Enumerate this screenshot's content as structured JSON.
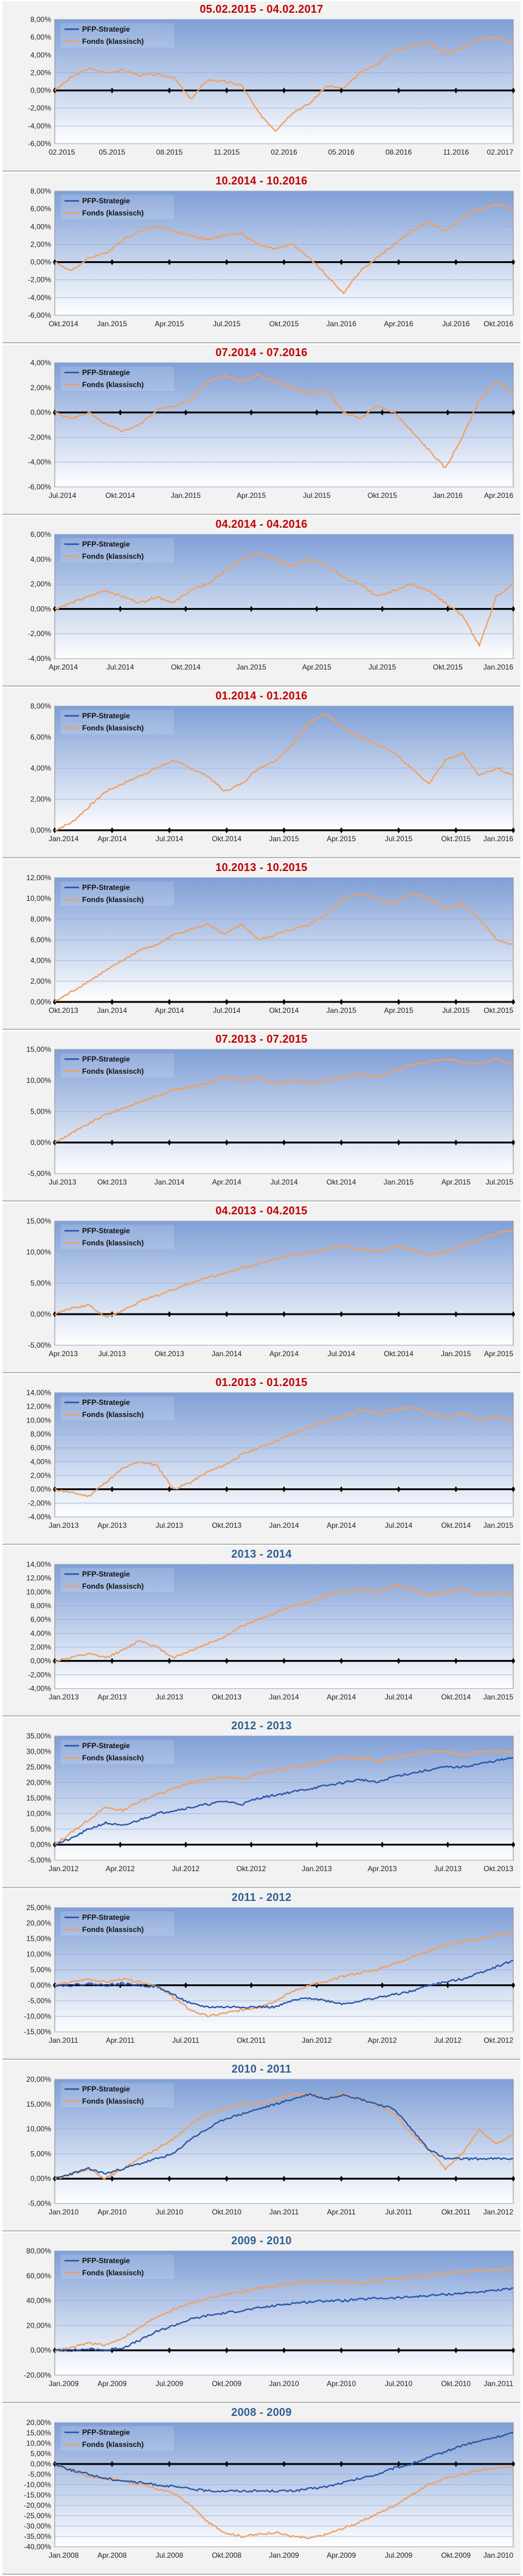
{
  "colors": {
    "title_red": "#c00000",
    "title_blue": "#2e5f93",
    "strategy_line": "#2855a6",
    "fund_line": "#f0a060",
    "plot_top": "#7f9fd6",
    "plot_bottom": "#ffffff",
    "grid": "#95aee0"
  },
  "legend": {
    "strategy": "PFP-Strategie",
    "fund": "Fonds (klassisch)"
  },
  "chart_data": [
    {
      "type": "line",
      "title": "05.02.2015 - 04.02.2017",
      "title_color": "red",
      "ylim": [
        -6,
        8
      ],
      "y_ticks": [
        -6,
        -4,
        -2,
        0,
        2,
        4,
        6,
        8
      ],
      "y_tick_labels": [
        "-6,00%",
        "-4,00%",
        "-2,00%",
        "0,00%",
        "2,00%",
        "4,00%",
        "6,00%",
        "8,00%"
      ],
      "x_tick_labels": [
        "02.2015",
        "05.2015",
        "08.2015",
        "11.2015",
        "02.2016",
        "05.2016",
        "08.2016",
        "11.2016",
        "02.2017"
      ],
      "strategy_visible": false,
      "fund_points": [
        0,
        1.5,
        2.5,
        2,
        2.3,
        1.7,
        1.8,
        1.5,
        -1.0,
        1.2,
        1.0,
        0.6,
        -2.5,
        -4.5,
        -2.5,
        -1.5,
        0.5,
        0.2,
        2.0,
        3.0,
        4.5,
        5.0,
        5.5,
        4.2,
        4.8,
        5.8,
        6.0,
        5.5
      ]
    },
    {
      "type": "line",
      "title": "10.2014 - 10.2016",
      "title_color": "red",
      "ylim": [
        -6,
        8
      ],
      "y_ticks": [
        -6,
        -4,
        -2,
        0,
        2,
        4,
        6,
        8
      ],
      "y_tick_labels": [
        "-6,00%",
        "-4,00%",
        "-2,00%",
        "0,00%",
        "2,00%",
        "4,00%",
        "6,00%",
        "8,00%"
      ],
      "x_tick_labels": [
        "Okt.2014",
        "Jan.2015",
        "Apr.2015",
        "Jul.2015",
        "Okt.2015",
        "Jan.2016",
        "Apr.2016",
        "Jul.2016",
        "Okt.2016"
      ],
      "strategy_visible": false,
      "fund_points": [
        0,
        -1.0,
        0.5,
        1.0,
        2.5,
        3.5,
        4.0,
        3.5,
        3.0,
        2.5,
        3.0,
        3.2,
        2.0,
        1.5,
        2.0,
        0.5,
        -1.5,
        -3.5,
        -1.0,
        0.5,
        2.0,
        3.5,
        4.5,
        3.5,
        5.0,
        6.0,
        6.5,
        6.0
      ]
    },
    {
      "type": "line",
      "title": "07.2014 - 07.2016",
      "title_color": "red",
      "ylim": [
        -6,
        4
      ],
      "y_ticks": [
        -6,
        -4,
        -2,
        0,
        2,
        4
      ],
      "y_tick_labels": [
        "-6,00%",
        "-4,00%",
        "-2,00%",
        "0,00%",
        "2,00%",
        "4,00%"
      ],
      "x_tick_labels": [
        "Jul.2014",
        "Okt.2014",
        "Jan.2015",
        "Apr.2015",
        "Jul.2015",
        "Okt.2015",
        "Jan.2016",
        "Apr.2016"
      ],
      "strategy_visible": false,
      "fund_points": [
        0,
        -0.5,
        0,
        -1.0,
        -1.5,
        -1.0,
        0.2,
        0.5,
        1.0,
        2.5,
        3.0,
        2.5,
        3.0,
        2.5,
        2.0,
        1.5,
        1.8,
        0,
        -0.5,
        0.5,
        0,
        -1.5,
        -3.0,
        -4.5,
        -2.0,
        1.0,
        2.5,
        1.5
      ]
    },
    {
      "type": "line",
      "title": "04.2014 - 04.2016",
      "title_color": "red",
      "ylim": [
        -4,
        6
      ],
      "y_ticks": [
        -4,
        -2,
        0,
        2,
        4,
        6
      ],
      "y_tick_labels": [
        "-4,00%",
        "-2,00%",
        "0,00%",
        "2,00%",
        "4,00%",
        "6,00%"
      ],
      "x_tick_labels": [
        "Apr.2014",
        "Jul.2014",
        "Okt.2014",
        "Jan.2015",
        "Apr.2015",
        "Jul.2015",
        "Okt.2015",
        "Jan.2016"
      ],
      "strategy_visible": false,
      "fund_points": [
        0,
        0.5,
        1.0,
        1.5,
        1.0,
        0.5,
        1.0,
        0.5,
        1.5,
        2.0,
        3.0,
        4.0,
        4.5,
        4.0,
        3.5,
        4.0,
        3.5,
        2.5,
        2.0,
        1.0,
        1.5,
        2.0,
        1.5,
        0.5,
        -0.5,
        -3.0,
        1.0,
        2.0
      ]
    },
    {
      "type": "line",
      "title": "01.2014 - 01.2016",
      "title_color": "red",
      "ylim": [
        0,
        8
      ],
      "y_ticks": [
        0,
        2,
        4,
        6,
        8
      ],
      "y_tick_labels": [
        "0,00%",
        "2,00%",
        "4,00%",
        "6,00%",
        "8,00%"
      ],
      "x_tick_labels": [
        "Jan.2014",
        "Apr.2014",
        "Jul.2014",
        "Okt.2014",
        "Jan.2015",
        "Apr.2015",
        "Jul.2015",
        "Okt.2015",
        "Jan.2016"
      ],
      "strategy_visible": false,
      "fund_points": [
        0,
        0.5,
        1.5,
        2.5,
        3.0,
        3.5,
        4.0,
        4.5,
        4.0,
        3.5,
        2.5,
        3.0,
        4.0,
        4.5,
        5.5,
        7.0,
        7.5,
        6.5,
        6.0,
        5.5,
        5.0,
        4.0,
        3.0,
        4.5,
        5.0,
        3.5,
        4.0,
        3.5
      ]
    },
    {
      "type": "line",
      "title": "10.2013 - 10.2015",
      "title_color": "red",
      "ylim": [
        0,
        12
      ],
      "y_ticks": [
        0,
        2,
        4,
        6,
        8,
        10,
        12
      ],
      "y_tick_labels": [
        "0,00%",
        "2,00%",
        "4,00%",
        "6,00%",
        "8,00%",
        "10,00%",
        "12,00%"
      ],
      "x_tick_labels": [
        "Okt.2013",
        "Jan.2014",
        "Apr.2014",
        "Jul.2014",
        "Okt.2014",
        "Jan.2015",
        "Apr.2015",
        "Jul.2015",
        "Okt.2015"
      ],
      "strategy_visible": false,
      "fund_points": [
        0,
        1.0,
        2.0,
        3.0,
        4.0,
        5.0,
        5.5,
        6.5,
        7.0,
        7.5,
        6.5,
        7.5,
        6.0,
        6.5,
        7.0,
        7.5,
        8.5,
        10.0,
        10.5,
        10.0,
        9.5,
        10.5,
        10.0,
        9.0,
        9.5,
        8.0,
        6.0,
        5.5
      ]
    },
    {
      "type": "line",
      "title": "07.2013 - 07.2015",
      "title_color": "red",
      "ylim": [
        -5,
        15
      ],
      "y_ticks": [
        -5,
        0,
        5,
        10,
        15
      ],
      "y_tick_labels": [
        "-5,00%",
        "0,00%",
        "5,00%",
        "10,00%",
        "15,00%"
      ],
      "x_tick_labels": [
        "Jul.2013",
        "Okt.2013",
        "Jan.2014",
        "Apr.2014",
        "Jul.2014",
        "Okt.2014",
        "Jan.2015",
        "Apr.2015",
        "Jul.2015"
      ],
      "strategy_visible": false,
      "fund_points": [
        0,
        1.5,
        3.0,
        4.5,
        5.5,
        6.5,
        7.5,
        8.5,
        9.0,
        9.5,
        10.5,
        10.0,
        10.5,
        9.5,
        10.0,
        9.5,
        10.0,
        10.5,
        11.0,
        10.5,
        11.5,
        12.5,
        13.0,
        13.5,
        13.0,
        12.5,
        13.5,
        12.5
      ]
    },
    {
      "type": "line",
      "title": "04.2013 - 04.2015",
      "title_color": "red",
      "ylim": [
        -5,
        15
      ],
      "y_ticks": [
        -5,
        0,
        5,
        10,
        15
      ],
      "y_tick_labels": [
        "-5,00%",
        "0,00%",
        "5,00%",
        "10,00%",
        "15,00%"
      ],
      "x_tick_labels": [
        "Apr.2013",
        "Jul.2013",
        "Okt.2013",
        "Jan.2014",
        "Apr.2014",
        "Jul.2014",
        "Okt.2014",
        "Jan.2015",
        "Apr.2015"
      ],
      "strategy_visible": false,
      "fund_points": [
        0,
        1.0,
        1.5,
        -0.5,
        0.5,
        2.0,
        3.0,
        4.0,
        5.0,
        6.0,
        6.5,
        7.5,
        8.0,
        9.0,
        9.5,
        10.0,
        10.5,
        11.0,
        10.5,
        10.0,
        11.0,
        10.5,
        9.5,
        10.0,
        11.0,
        12.0,
        13.0,
        13.5
      ]
    },
    {
      "type": "line",
      "title": "01.2013 - 01.2015",
      "title_color": "red",
      "ylim": [
        -4,
        14
      ],
      "y_ticks": [
        -4,
        -2,
        0,
        2,
        4,
        6,
        8,
        10,
        12,
        14
      ],
      "y_tick_labels": [
        "-4,00%",
        "-2,00%",
        "0,00%",
        "2,00%",
        "4,00%",
        "6,00%",
        "8,00%",
        "10,00%",
        "12,00%",
        "14,00%"
      ],
      "x_tick_labels": [
        "Jan.2013",
        "Apr.2013",
        "Jul.2013",
        "Okt.2013",
        "Jan.2014",
        "Apr.2014",
        "Jul.2014",
        "Okt.2014",
        "Jan.2015"
      ],
      "strategy_visible": false,
      "fund_points": [
        0,
        -0.5,
        -1.0,
        1.0,
        3.0,
        4.0,
        3.5,
        0,
        1.0,
        2.5,
        3.5,
        5.0,
        6.0,
        7.0,
        8.0,
        9.0,
        10.0,
        10.5,
        11.5,
        11.0,
        11.5,
        12.0,
        11.0,
        10.5,
        11.0,
        10.0,
        10.5,
        10.0
      ]
    },
    {
      "type": "line",
      "title": "2013 - 2014",
      "title_color": "blue",
      "ylim": [
        -4,
        14
      ],
      "y_ticks": [
        -4,
        -2,
        0,
        2,
        4,
        6,
        8,
        10,
        12,
        14
      ],
      "y_tick_labels": [
        "-4,00%",
        "-2,00%",
        "0,00%",
        "2,00%",
        "4,00%",
        "6,00%",
        "8,00%",
        "10,00%",
        "12,00%",
        "14,00%"
      ],
      "x_tick_labels": [
        "Jan.2013",
        "Apr.2013",
        "Jul.2013",
        "Okt.2013",
        "Jan.2014",
        "Apr.2014",
        "Jul.2014",
        "Okt.2014",
        "Jan.2015"
      ],
      "strategy_visible": false,
      "fund_points": [
        0,
        0.5,
        1.0,
        0.5,
        1.5,
        3.0,
        2.0,
        0.5,
        1.5,
        2.5,
        3.5,
        5.0,
        6.0,
        7.0,
        8.0,
        8.5,
        9.5,
        10.0,
        10.5,
        10.0,
        11.0,
        10.5,
        9.5,
        10.0,
        10.5,
        9.5,
        10.0,
        9.5
      ]
    },
    {
      "type": "line",
      "title": "2012 - 2013",
      "title_color": "blue",
      "ylim": [
        -5,
        35
      ],
      "y_ticks": [
        -5,
        0,
        5,
        10,
        15,
        20,
        25,
        30,
        35
      ],
      "y_tick_labels": [
        "-5,00%",
        "0,00%",
        "5,00%",
        "10,00%",
        "15,00%",
        "20,00%",
        "25,00%",
        "30,00%",
        "35,00%"
      ],
      "x_tick_labels": [
        "Jan.2012",
        "Apr.2012",
        "Jul.2012",
        "Okt.2012",
        "Jan.2013",
        "Apr.2013",
        "Jul.2013",
        "Okt.2013"
      ],
      "strategy_visible": true,
      "strategy_points": [
        0,
        2,
        5,
        7,
        6,
        8,
        10,
        11,
        12,
        13,
        14,
        13,
        15,
        16,
        17,
        18,
        19,
        20,
        21,
        20,
        22,
        23,
        24,
        25,
        25,
        26,
        27,
        28
      ],
      "fund_points": [
        0,
        4,
        8,
        12,
        11,
        14,
        16,
        18,
        20,
        21,
        22,
        21,
        23,
        24,
        25,
        26,
        27,
        28,
        28,
        27,
        28,
        29,
        30,
        30,
        29,
        30,
        30,
        30
      ]
    },
    {
      "type": "line",
      "title": "2011 - 2012",
      "title_color": "blue",
      "ylim": [
        -15,
        25
      ],
      "y_ticks": [
        -15,
        -10,
        -5,
        0,
        5,
        10,
        15,
        20,
        25
      ],
      "y_tick_labels": [
        "-15,00%",
        "-10,00%",
        "-5,00%",
        "0,00%",
        "5,00%",
        "10,00%",
        "15,00%",
        "20,00%",
        "25,00%"
      ],
      "x_tick_labels": [
        "Jan.2011",
        "Apr.2011",
        "Jul.2011",
        "Okt.2011",
        "Jan.2012",
        "Apr.2012",
        "Jul.2012",
        "Okt.2012"
      ],
      "strategy_visible": true,
      "strategy_points": [
        0,
        0,
        0.5,
        0,
        0.5,
        0,
        -0.5,
        -3,
        -6,
        -7,
        -7,
        -7,
        -7,
        -7,
        -5,
        -4,
        -5,
        -6,
        -5,
        -4,
        -3,
        -2,
        0,
        1,
        2,
        4,
        6,
        8
      ],
      "fund_points": [
        0,
        1,
        2,
        1,
        2,
        1,
        0,
        -4,
        -8,
        -10,
        -9,
        -8,
        -7,
        -5,
        -2,
        0,
        1,
        3,
        4,
        5,
        7,
        9,
        11,
        13,
        14,
        15,
        16,
        17
      ]
    },
    {
      "type": "line",
      "title": "2010 - 2011",
      "title_color": "blue",
      "ylim": [
        -5,
        20
      ],
      "y_ticks": [
        -5,
        0,
        5,
        10,
        15,
        20
      ],
      "y_tick_labels": [
        "-5,00%",
        "0,00%",
        "5,00%",
        "10,00%",
        "15,00%",
        "20,00%"
      ],
      "x_tick_labels": [
        "Jan.2010",
        "Apr.2010",
        "Jul.2010",
        "Okt.2010",
        "Jan.2011",
        "Apr.2011",
        "Jul.2011",
        "Okt.2011",
        "Jan.2012"
      ],
      "strategy_visible": true,
      "strategy_points": [
        0,
        1,
        2,
        1,
        2,
        3,
        4,
        5,
        8,
        10,
        12,
        13,
        14,
        15,
        16,
        17,
        16,
        17,
        16,
        15,
        14,
        10,
        6,
        4,
        4,
        4,
        4,
        4
      ],
      "fund_points": [
        0,
        1,
        2,
        0,
        2,
        4,
        6,
        8,
        11,
        13,
        14,
        15,
        15,
        16,
        17,
        17,
        16,
        17,
        16,
        15,
        13,
        9,
        6,
        2,
        5,
        10,
        7,
        9
      ]
    },
    {
      "type": "line",
      "title": "2009 - 2010",
      "title_color": "blue",
      "ylim": [
        -20,
        80
      ],
      "y_ticks": [
        -20,
        0,
        20,
        40,
        60,
        80
      ],
      "y_tick_labels": [
        "-20,00%",
        "0,00%",
        "20,00%",
        "40,00%",
        "60,00%",
        "80,00%"
      ],
      "x_tick_labels": [
        "Jan.2009",
        "Apr.2009",
        "Jul.2009",
        "Okt.2009",
        "Jan.2010",
        "Apr.2010",
        "Jul.2010",
        "Okt.2010",
        "Jan.2011"
      ],
      "strategy_visible": true,
      "strategy_points": [
        0,
        0,
        1,
        0,
        2,
        8,
        15,
        20,
        25,
        28,
        30,
        32,
        34,
        36,
        38,
        39,
        40,
        40,
        41,
        42,
        42,
        43,
        44,
        45,
        46,
        47,
        48,
        50
      ],
      "fund_points": [
        0,
        2,
        6,
        4,
        10,
        18,
        27,
        33,
        38,
        42,
        45,
        47,
        50,
        52,
        54,
        55,
        56,
        55,
        54,
        56,
        58,
        59,
        60,
        62,
        63,
        64,
        65,
        66
      ]
    },
    {
      "type": "line",
      "title": "2008 - 2009",
      "title_color": "blue",
      "ylim": [
        -40,
        20
      ],
      "y_ticks": [
        -40,
        -35,
        -30,
        -25,
        -20,
        -15,
        -10,
        -5,
        0,
        5,
        10,
        15,
        20
      ],
      "y_tick_labels": [
        "-40,00%",
        "-35,00%",
        "-30,00%",
        "-25,00%",
        "-20,00%",
        "-15,00%",
        "-10,00%",
        "-5,00%",
        "0,00%",
        "5,00%",
        "10,00%",
        "15,00%",
        "20,00%"
      ],
      "x_tick_labels": [
        "Jan.2008",
        "Apr.2008",
        "Jul.2008",
        "Okt.2008",
        "Jan.2009",
        "Apr.2009",
        "Jul.2009",
        "Okt.2009",
        "Jan.2010"
      ],
      "strategy_visible": true,
      "strategy_points": [
        0,
        -3,
        -5,
        -7,
        -8,
        -9,
        -10,
        -11,
        -12,
        -13,
        -13,
        -13,
        -13,
        -13,
        -13,
        -12,
        -11,
        -9,
        -7,
        -5,
        -2,
        0,
        3,
        6,
        9,
        11,
        13,
        15
      ],
      "fund_points": [
        0,
        -3,
        -6,
        -7,
        -8,
        -10,
        -12,
        -14,
        -20,
        -28,
        -33,
        -35,
        -34,
        -33,
        -35,
        -36,
        -34,
        -31,
        -28,
        -24,
        -20,
        -15,
        -10,
        -7,
        -5,
        -3,
        -2,
        -1
      ]
    }
  ]
}
